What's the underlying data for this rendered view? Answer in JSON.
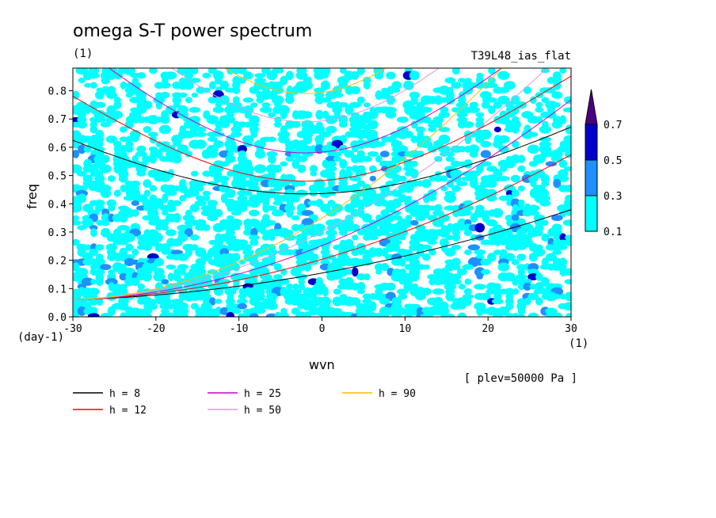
{
  "chart_data": {
    "type": "contour",
    "title": "omega S-T power spectrum",
    "subtitle": "(1)",
    "experiment": "T39L48_ias_flat",
    "xlabel": "wvn",
    "xunit": "(1)",
    "ylabel": "freq",
    "yunit": "(day-1)",
    "xlim": [
      -30,
      30
    ],
    "ylim": [
      0,
      0.88
    ],
    "xticks": [
      "-30",
      "-20",
      "-10",
      "0",
      "10",
      "20",
      "30"
    ],
    "yticks": [
      "0.0",
      "0.1",
      "0.2",
      "0.3",
      "0.4",
      "0.5",
      "0.6",
      "0.7",
      "0.8"
    ],
    "level_note": "[ plev=50000 Pa ]",
    "colorbar": {
      "levels": [
        "0.1",
        "0.3",
        "0.5",
        "0.7"
      ],
      "colors": [
        "#00ffff",
        "#1e90ff",
        "#0000cd",
        "#4b0082"
      ]
    },
    "dispersion_curves": [
      {
        "label": "h =  8",
        "color": "#000000",
        "min_freq": 0.435
      },
      {
        "label": "h = 12",
        "color": "#ff0000",
        "min_freq": 0.48
      },
      {
        "label": "h = 25",
        "color": "#cc00cc",
        "min_freq": 0.58
      },
      {
        "label": "h = 50",
        "color": "#dd99dd",
        "min_freq": 0.69
      },
      {
        "label": "h = 90",
        "color": "#ffbb00",
        "min_freq": 0.79
      }
    ]
  }
}
